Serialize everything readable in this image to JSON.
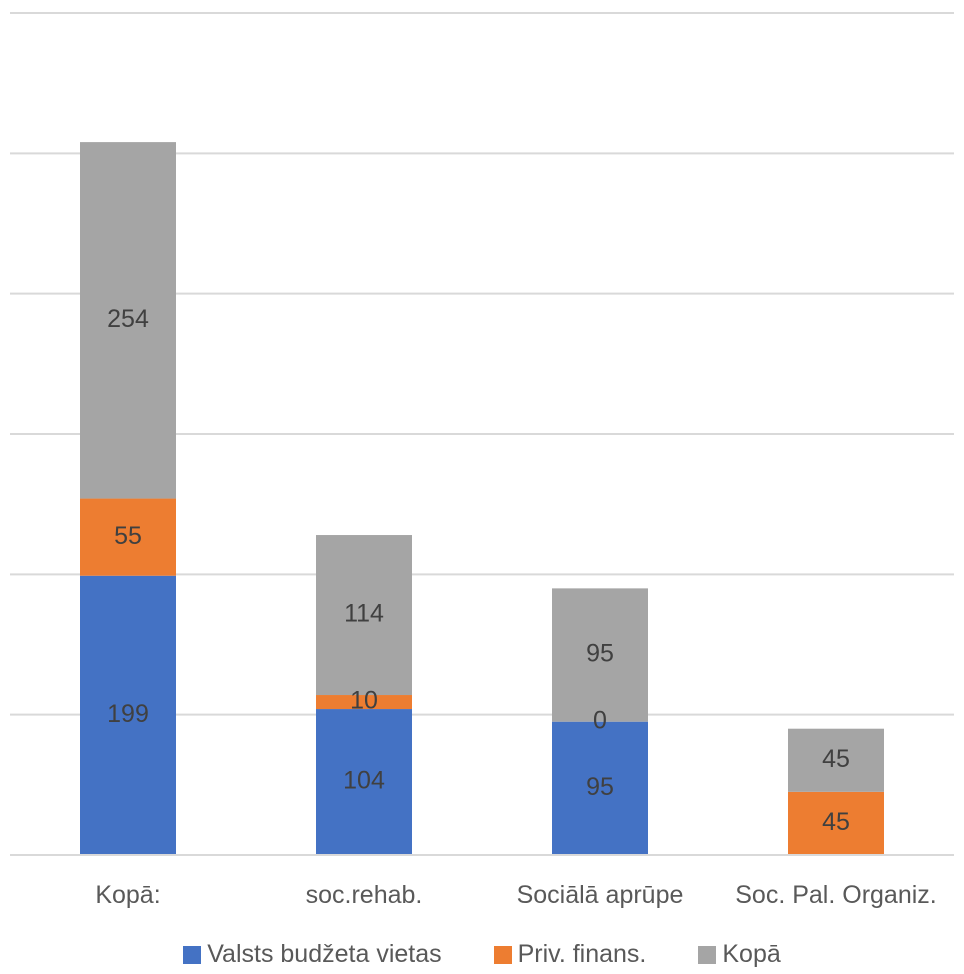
{
  "chart_data": {
    "type": "bar",
    "stacked": true,
    "categories": [
      "Kopā:",
      "soc.rehab.",
      "Sociālā aprūpe",
      "Soc. Pal. Organiz."
    ],
    "series": [
      {
        "name": "Valsts budžeta vietas",
        "color": "#4472c4",
        "values": [
          199,
          104,
          95,
          null
        ],
        "labels": [
          "199",
          "104",
          "95",
          ""
        ]
      },
      {
        "name": "Priv. finans.",
        "color": "#ed7d31",
        "values": [
          55,
          10,
          0,
          45
        ],
        "labels": [
          "55",
          "10",
          "0",
          "45"
        ]
      },
      {
        "name": "Kopā",
        "color": "#a5a5a5",
        "values": [
          254,
          114,
          95,
          45
        ],
        "labels": [
          "254",
          "114",
          "95",
          "45"
        ]
      }
    ],
    "ylim": [
      0,
      600
    ],
    "grid": true,
    "legend_position": "bottom"
  }
}
